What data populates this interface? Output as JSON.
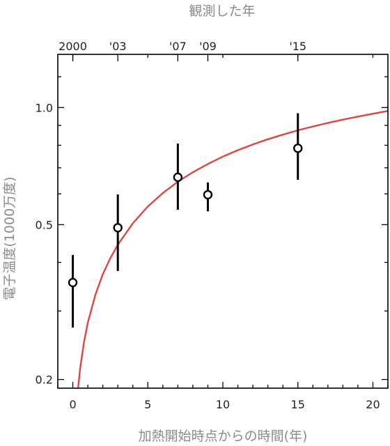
{
  "chart_data": {
    "type": "scatter",
    "xlabel": "加熱開始時点からの時間(年)",
    "ylabel": "電子温度(1000万度)",
    "top_axis_label": "観測した年",
    "y_scale": "log",
    "xlim": [
      -1.0,
      21.0
    ],
    "ylim": [
      0.19,
      1.37
    ],
    "x_ticks": [
      0,
      5,
      10,
      15,
      20
    ],
    "y_ticks": [
      0.2,
      0.5,
      1.0
    ],
    "y_tick_labels": [
      "0.2",
      "0.5",
      "1.0"
    ],
    "top_ticks": [
      {
        "x": 0,
        "label": "2000"
      },
      {
        "x": 3,
        "label": "'03"
      },
      {
        "x": 7,
        "label": "'07"
      },
      {
        "x": 9,
        "label": "'09"
      },
      {
        "x": 15,
        "label": "'15"
      }
    ],
    "points": [
      {
        "x": 0,
        "y": 0.355,
        "y_low": 0.272,
        "y_high": 0.418
      },
      {
        "x": 3,
        "y": 0.491,
        "y_low": 0.38,
        "y_high": 0.598
      },
      {
        "x": 7,
        "y": 0.662,
        "y_low": 0.546,
        "y_high": 0.808
      },
      {
        "x": 9,
        "y": 0.597,
        "y_low": 0.541,
        "y_high": 0.642
      },
      {
        "x": 15,
        "y": 0.786,
        "y_low": 0.652,
        "y_high": 0.967
      }
    ],
    "fit_curve": {
      "color": "#e0443c",
      "x": [
        0.35,
        0.5,
        0.75,
        1,
        1.5,
        2,
        2.5,
        3,
        4,
        5,
        6,
        7,
        8,
        9,
        10,
        11,
        12,
        13,
        14,
        15,
        16,
        17,
        18,
        19,
        20,
        21
      ],
      "y": [
        0.19,
        0.215,
        0.25,
        0.28,
        0.33,
        0.373,
        0.41,
        0.444,
        0.504,
        0.557,
        0.603,
        0.645,
        0.682,
        0.716,
        0.748,
        0.777,
        0.804,
        0.829,
        0.852,
        0.874,
        0.894,
        0.913,
        0.931,
        0.948,
        0.964,
        0.98
      ]
    },
    "grid": false,
    "colors": {
      "points": "#000000",
      "fit": "#e0443c",
      "labels": "#8a8a8a"
    }
  }
}
